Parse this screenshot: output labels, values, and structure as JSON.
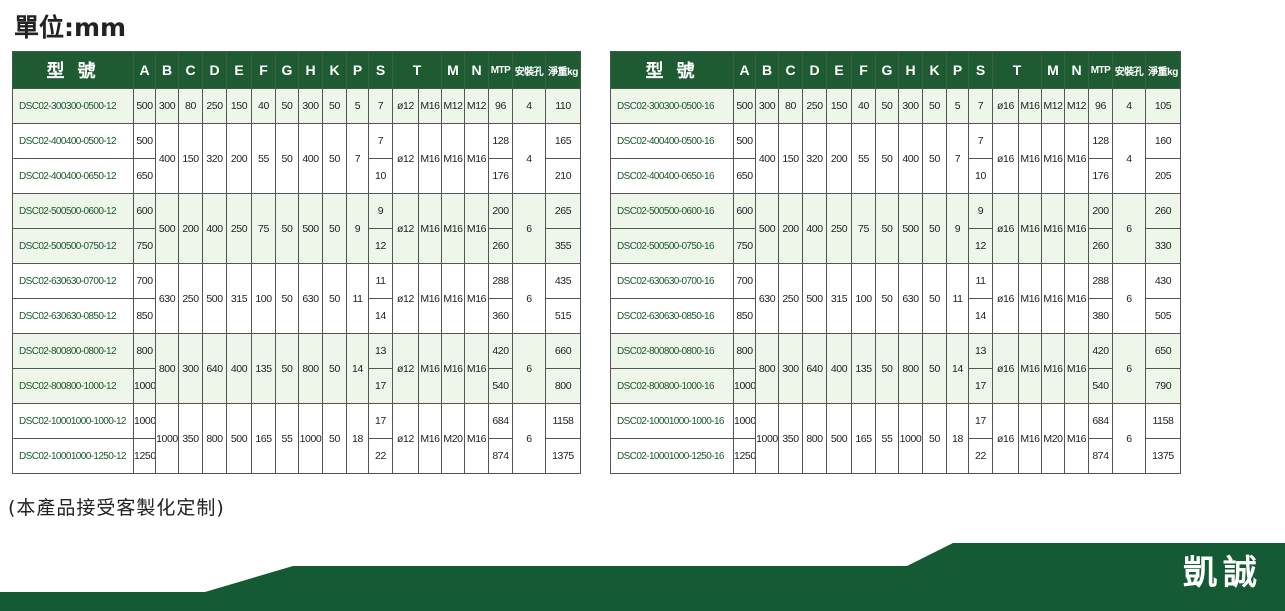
{
  "unit_label": "單位:mm",
  "note": "(本產品接受客製化定制)",
  "brand": "凱誠",
  "colors": {
    "header_green": "#1e5b33",
    "banner_green": "#135a35",
    "row_green": "#eef6ea",
    "model_text": "#1a5a2a"
  },
  "headers": [
    "型 號",
    "A",
    "B",
    "C",
    "D",
    "E",
    "F",
    "G",
    "H",
    "K",
    "P",
    "S",
    "T",
    "M",
    "N",
    "MTP",
    "安裝孔",
    "淨重kg"
  ],
  "left": {
    "groups": [
      {
        "models": [
          "DSC02-300300-0500-12"
        ],
        "A": [
          "500"
        ],
        "shared": {
          "B": "300",
          "C": "80",
          "D": "250",
          "E": "150",
          "F": "40",
          "G": "50",
          "H": "300",
          "K": "50",
          "P": "5",
          "T1": "ø12",
          "T2": "M16",
          "M": "M12",
          "N": "M12",
          "holes": "4"
        },
        "S": [
          "7"
        ],
        "MTP": [
          "96"
        ],
        "weight": [
          "110"
        ]
      },
      {
        "models": [
          "DSC02-400400-0500-12",
          "DSC02-400400-0650-12"
        ],
        "A": [
          "500",
          "650"
        ],
        "shared": {
          "B": "400",
          "C": "150",
          "D": "320",
          "E": "200",
          "F": "55",
          "G": "50",
          "H": "400",
          "K": "50",
          "P": "7",
          "T1": "ø12",
          "T2": "M16",
          "M": "M16",
          "N": "M16",
          "holes": "4"
        },
        "S": [
          "7",
          "10"
        ],
        "MTP": [
          "128",
          "176"
        ],
        "weight": [
          "165",
          "210"
        ]
      },
      {
        "models": [
          "DSC02-500500-0600-12",
          "DSC02-500500-0750-12"
        ],
        "A": [
          "600",
          "750"
        ],
        "shared": {
          "B": "500",
          "C": "200",
          "D": "400",
          "E": "250",
          "F": "75",
          "G": "50",
          "H": "500",
          "K": "50",
          "P": "9",
          "T1": "ø12",
          "T2": "M16",
          "M": "M16",
          "N": "M16",
          "holes": "6"
        },
        "S": [
          "9",
          "12"
        ],
        "MTP": [
          "200",
          "260"
        ],
        "weight": [
          "265",
          "355"
        ]
      },
      {
        "models": [
          "DSC02-630630-0700-12",
          "DSC02-630630-0850-12"
        ],
        "A": [
          "700",
          "850"
        ],
        "shared": {
          "B": "630",
          "C": "250",
          "D": "500",
          "E": "315",
          "F": "100",
          "G": "50",
          "H": "630",
          "K": "50",
          "P": "11",
          "T1": "ø12",
          "T2": "M16",
          "M": "M16",
          "N": "M16",
          "holes": "6"
        },
        "S": [
          "11",
          "14"
        ],
        "MTP": [
          "288",
          "360"
        ],
        "weight": [
          "435",
          "515"
        ]
      },
      {
        "models": [
          "DSC02-800800-0800-12",
          "DSC02-800800-1000-12"
        ],
        "A": [
          "800",
          "1000"
        ],
        "shared": {
          "B": "800",
          "C": "300",
          "D": "640",
          "E": "400",
          "F": "135",
          "G": "50",
          "H": "800",
          "K": "50",
          "P": "14",
          "T1": "ø12",
          "T2": "M16",
          "M": "M16",
          "N": "M16",
          "holes": "6"
        },
        "S": [
          "13",
          "17"
        ],
        "MTP": [
          "420",
          "540"
        ],
        "weight": [
          "660",
          "800"
        ]
      },
      {
        "models": [
          "DSC02-10001000-1000-12",
          "DSC02-10001000-1250-12"
        ],
        "A": [
          "1000",
          "1250"
        ],
        "shared": {
          "B": "1000",
          "C": "350",
          "D": "800",
          "E": "500",
          "F": "165",
          "G": "55",
          "H": "1000",
          "K": "50",
          "P": "18",
          "T1": "ø12",
          "T2": "M16",
          "M": "M20",
          "N": "M16",
          "holes": "6"
        },
        "S": [
          "17",
          "22"
        ],
        "MTP": [
          "684",
          "874"
        ],
        "weight": [
          "1158",
          "1375"
        ]
      }
    ]
  },
  "right": {
    "groups": [
      {
        "models": [
          "DSC02-300300-0500-16"
        ],
        "A": [
          "500"
        ],
        "shared": {
          "B": "300",
          "C": "80",
          "D": "250",
          "E": "150",
          "F": "40",
          "G": "50",
          "H": "300",
          "K": "50",
          "P": "5",
          "T1": "ø16",
          "T2": "M16",
          "M": "M12",
          "N": "M12",
          "holes": "4"
        },
        "S": [
          "7"
        ],
        "MTP": [
          "96"
        ],
        "weight": [
          "105"
        ]
      },
      {
        "models": [
          "DSC02-400400-0500-16",
          "DSC02-400400-0650-16"
        ],
        "A": [
          "500",
          "650"
        ],
        "shared": {
          "B": "400",
          "C": "150",
          "D": "320",
          "E": "200",
          "F": "55",
          "G": "50",
          "H": "400",
          "K": "50",
          "P": "7",
          "T1": "ø16",
          "T2": "M16",
          "M": "M16",
          "N": "M16",
          "holes": "4"
        },
        "S": [
          "7",
          "10"
        ],
        "MTP": [
          "128",
          "176"
        ],
        "weight": [
          "160",
          "205"
        ]
      },
      {
        "models": [
          "DSC02-500500-0600-16",
          "DSC02-500500-0750-16"
        ],
        "A": [
          "600",
          "750"
        ],
        "shared": {
          "B": "500",
          "C": "200",
          "D": "400",
          "E": "250",
          "F": "75",
          "G": "50",
          "H": "500",
          "K": "50",
          "P": "9",
          "T1": "ø16",
          "T2": "M16",
          "M": "M16",
          "N": "M16",
          "holes": "6"
        },
        "S": [
          "9",
          "12"
        ],
        "MTP": [
          "200",
          "260"
        ],
        "weight": [
          "260",
          "330"
        ]
      },
      {
        "models": [
          "DSC02-630630-0700-16",
          "DSC02-630630-0850-16"
        ],
        "A": [
          "700",
          "850"
        ],
        "shared": {
          "B": "630",
          "C": "250",
          "D": "500",
          "E": "315",
          "F": "100",
          "G": "50",
          "H": "630",
          "K": "50",
          "P": "11",
          "T1": "ø16",
          "T2": "M16",
          "M": "M16",
          "N": "M16",
          "holes": "6"
        },
        "S": [
          "11",
          "14"
        ],
        "MTP": [
          "288",
          "380"
        ],
        "weight": [
          "430",
          "505"
        ]
      },
      {
        "models": [
          "DSC02-800800-0800-16",
          "DSC02-800800-1000-16"
        ],
        "A": [
          "800",
          "1000"
        ],
        "shared": {
          "B": "800",
          "C": "300",
          "D": "640",
          "E": "400",
          "F": "135",
          "G": "50",
          "H": "800",
          "K": "50",
          "P": "14",
          "T1": "ø16",
          "T2": "M16",
          "M": "M16",
          "N": "M16",
          "holes": "6"
        },
        "S": [
          "13",
          "17"
        ],
        "MTP": [
          "420",
          "540"
        ],
        "weight": [
          "650",
          "790"
        ]
      },
      {
        "models": [
          "DSC02-10001000-1000-16",
          "DSC02-10001000-1250-16"
        ],
        "A": [
          "1000",
          "1250"
        ],
        "shared": {
          "B": "1000",
          "C": "350",
          "D": "800",
          "E": "500",
          "F": "165",
          "G": "55",
          "H": "1000",
          "K": "50",
          "P": "18",
          "T1": "ø16",
          "T2": "M16",
          "M": "M20",
          "N": "M16",
          "holes": "6"
        },
        "S": [
          "17",
          "22"
        ],
        "MTP": [
          "684",
          "874"
        ],
        "weight": [
          "1158",
          "1375"
        ]
      }
    ]
  }
}
